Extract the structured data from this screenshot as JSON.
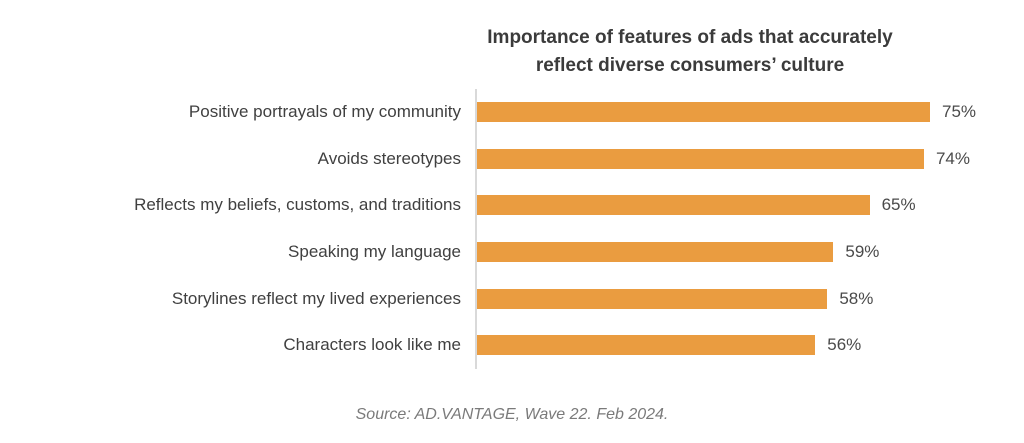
{
  "title": {
    "line1": "Importance of features of ads that accurately",
    "line2": "reflect diverse consumers’ culture"
  },
  "source_note": "Source: AD.VANTAGE, Wave 22. Feb 2024.",
  "colors": {
    "bar": "#ea9c40",
    "axis_line": "#d9d9d9",
    "title_text": "#3b3b3b",
    "category_text": "#404040",
    "value_text": "#4a4a4a",
    "source_text": "#7a7a7a"
  },
  "chart_data": {
    "type": "bar",
    "orientation": "horizontal",
    "title": "Importance of features of ads that accurately reflect diverse consumers’ culture",
    "categories": [
      "Positive portrayals of my community",
      "Avoids stereotypes",
      "Reflects my beliefs, customs, and traditions",
      "Speaking my language",
      "Storylines reflect my lived experiences",
      "Characters look like me"
    ],
    "values": [
      75,
      74,
      65,
      59,
      58,
      56
    ],
    "value_labels": [
      "75%",
      "74%",
      "65%",
      "59%",
      "58%",
      "56%"
    ],
    "xlabel": "",
    "ylabel": "",
    "xlim": [
      0,
      100
    ],
    "grid": false,
    "legend": false,
    "data_labels": "outside-end",
    "source_note": "Source: AD.VANTAGE, Wave 22. Feb 2024."
  }
}
